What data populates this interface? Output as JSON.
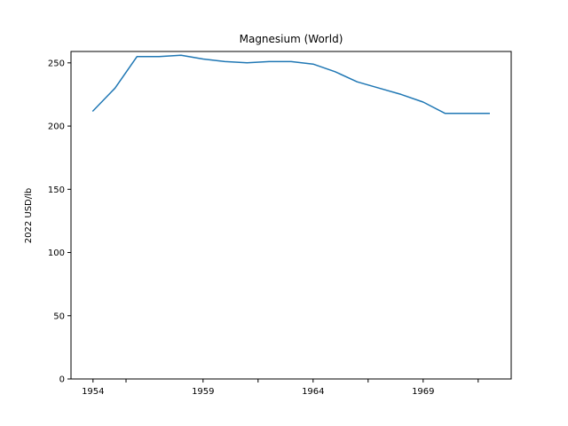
{
  "chart_data": {
    "type": "line",
    "title": "Magnesium (World)",
    "xlabel": "",
    "ylabel": "2022 USD/lb",
    "xlim": [
      1953,
      1973
    ],
    "ylim": [
      0,
      259
    ],
    "x_ticks": [
      {
        "value": 1954,
        "label": "1954"
      },
      {
        "value": 1955.5,
        "label": ""
      },
      {
        "value": 1959,
        "label": "1959"
      },
      {
        "value": 1961.5,
        "label": ""
      },
      {
        "value": 1964,
        "label": "1964"
      },
      {
        "value": 1966.5,
        "label": ""
      },
      {
        "value": 1969,
        "label": "1969"
      },
      {
        "value": 1971.5,
        "label": ""
      }
    ],
    "y_ticks": [
      0,
      50,
      100,
      150,
      200,
      250
    ],
    "grid": false,
    "color": "#1f77b4",
    "series": [
      {
        "x": [
          1954,
          1955,
          1956,
          1957,
          1958,
          1959,
          1960,
          1961,
          1962,
          1963,
          1964,
          1965,
          1966,
          1967,
          1968,
          1969,
          1970,
          1971,
          1972
        ],
        "y": [
          212,
          230,
          255,
          255,
          256,
          253,
          251,
          250,
          251,
          251,
          249,
          243,
          235,
          230,
          225,
          219,
          210,
          210,
          210
        ]
      }
    ]
  }
}
